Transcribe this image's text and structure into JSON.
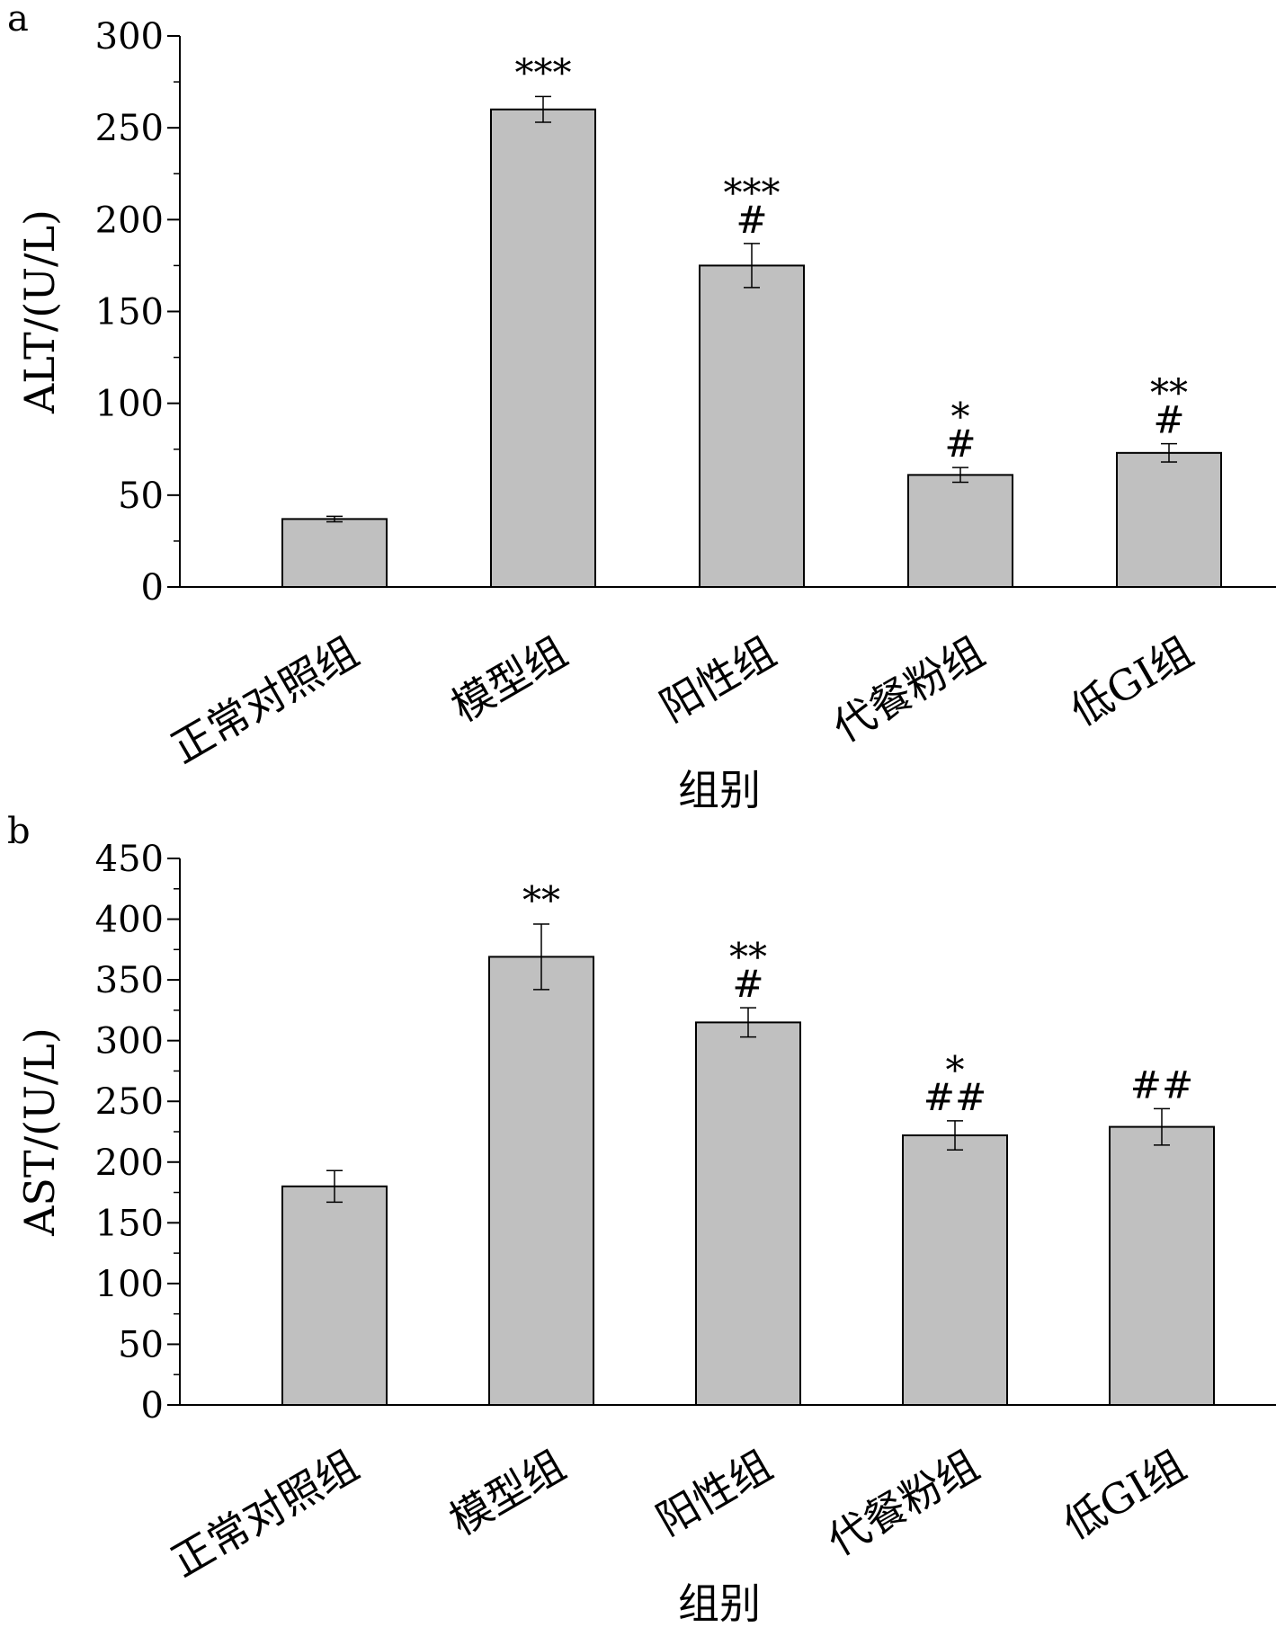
{
  "chart_data": [
    {
      "type": "bar",
      "panel": "a",
      "ylabel": "ALT/(U/L)",
      "xlabel": "组别",
      "categories": [
        "正常对照组",
        "模型组",
        "阳性组",
        "代餐粉组",
        "低GI组"
      ],
      "values": [
        37,
        260,
        175,
        61,
        73
      ],
      "errors": [
        1.5,
        7,
        12,
        4,
        5
      ],
      "significance": [
        [],
        [
          "***"
        ],
        [
          "***",
          "#"
        ],
        [
          "*",
          "#"
        ],
        [
          "**",
          "#"
        ]
      ],
      "ylim": [
        0,
        300
      ],
      "yticks": [
        0,
        50,
        100,
        150,
        200,
        250,
        300
      ],
      "bar_color": "#c0c0c0"
    },
    {
      "type": "bar",
      "panel": "b",
      "ylabel": "AST/(U/L)",
      "xlabel": "组别",
      "categories": [
        "正常对照组",
        "模型组",
        "阳性组",
        "代餐粉组",
        "低GI组"
      ],
      "values": [
        180,
        369,
        315,
        222,
        229
      ],
      "errors": [
        13,
        27,
        12,
        12,
        15
      ],
      "significance": [
        [],
        [
          "**"
        ],
        [
          "**",
          "#"
        ],
        [
          "*",
          "##"
        ],
        [
          "##"
        ]
      ],
      "ylim": [
        0,
        450
      ],
      "yticks": [
        0,
        50,
        100,
        150,
        200,
        250,
        300,
        350,
        400,
        450
      ],
      "bar_color": "#c0c0c0"
    }
  ]
}
